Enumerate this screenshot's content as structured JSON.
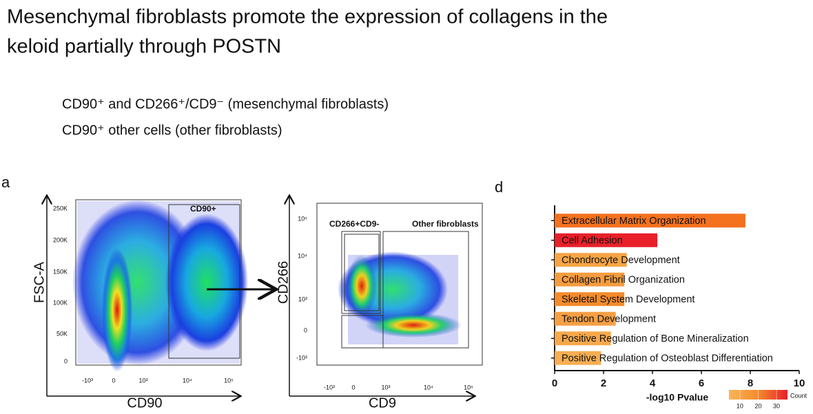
{
  "header": {
    "title_lines": [
      "Mesenchymal fibroblasts promote the expression of collagens in the",
      "keloid partially through POSTN"
    ]
  },
  "legend_lines": [
    "CD90⁺ and CD266⁺/CD9⁻  (mesenchymal fibroblasts)",
    "CD90⁺ other cells (other fibroblasts)"
  ],
  "panel_a": {
    "label": "a",
    "plot1": {
      "ylabel": "FSC-A",
      "xlabel": "CD90",
      "yticks": [
        "250K",
        "200K",
        "150K",
        "100K",
        "50K",
        "0"
      ],
      "xticks": [
        "-10³",
        "0",
        "10³",
        "10⁴",
        "10⁵"
      ],
      "gate": "CD90+"
    },
    "plot2": {
      "ylabel": "CD266",
      "xlabel": "CD9",
      "yticks": [
        "10⁵",
        "10⁴",
        "10³",
        "0",
        "-10³"
      ],
      "xticks": [
        "-10³",
        "0",
        "10³",
        "10⁴",
        "10⁵"
      ],
      "gates": [
        "CD266+CD9-",
        "Other fibroblasts"
      ]
    }
  },
  "chart_data": {
    "type": "barh",
    "panel_label": "d",
    "categories": [
      "Extracellular Matrix Organization",
      "Cell Adhesion",
      "Chondrocyte Development",
      "Collagen Fibril Organization",
      "Skeletal System Development",
      "Tendon Development",
      "Positive Regulation of Bone Mineralization",
      "Positive Regulation of Osteoblast Differentiation"
    ],
    "values": [
      7.8,
      4.2,
      2.95,
      2.85,
      2.85,
      2.5,
      2.3,
      1.9
    ],
    "colors": [
      "#f4711e",
      "#e8202a",
      "#f7a445",
      "#f59c3f",
      "#f48b2c",
      "#f6a045",
      "#f7a84b",
      "#f8ae52"
    ],
    "xlabel": "-log10 Pvalue",
    "xlim": [
      0,
      10
    ],
    "xticks": [
      0,
      2,
      4,
      6,
      8,
      10
    ],
    "color_scale": {
      "label": "Count",
      "lim": [
        4,
        36
      ],
      "ticks": [
        10,
        20,
        30
      ],
      "colors": [
        "#f9b55a",
        "#f48b2c",
        "#e8202a"
      ]
    }
  }
}
